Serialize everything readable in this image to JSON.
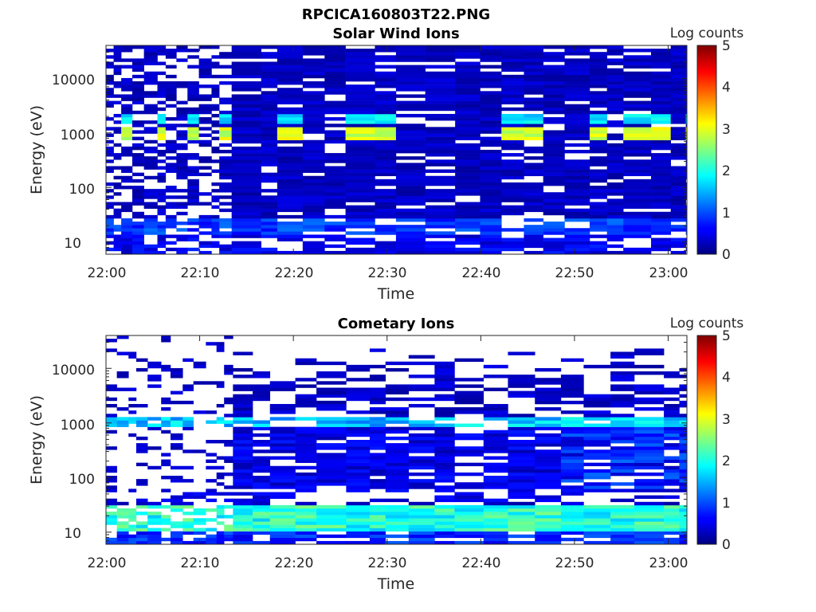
{
  "figure": {
    "title": "RPCICA160803T22.PNG"
  },
  "colormap": "jet",
  "chart_data": [
    {
      "type": "heatmap",
      "title": "Solar Wind Ions",
      "xlabel": "Time",
      "ylabel": "Energy (eV)",
      "y_scale": "log",
      "xlim": [
        "22:00",
        "23:02"
      ],
      "ylim": [
        6,
        40000
      ],
      "x_ticks": [
        "22:00",
        "22:10",
        "22:20",
        "22:30",
        "22:40",
        "22:50",
        "23:00"
      ],
      "y_ticks": [
        "10",
        "100",
        "1000",
        "10000"
      ],
      "colorbar": {
        "label": "Log counts",
        "range": [
          0,
          5
        ],
        "ticks": [
          "0",
          "1",
          "2",
          "3",
          "4",
          "5"
        ]
      },
      "features": [
        {
          "description": "periodic peak near 1000 eV, repeating about every 3.3 min",
          "energy_eV": 950,
          "log_counts": 3.0
        },
        {
          "description": "secondary band near 1700 eV",
          "energy_eV": 1700,
          "log_counts": 1.8
        },
        {
          "description": "low-energy band 15–25 eV",
          "energy_eV": 20,
          "log_counts": 1.0
        },
        {
          "description": "sparse background",
          "log_counts": 0.3
        }
      ]
    },
    {
      "type": "heatmap",
      "title": "Cometary Ions",
      "xlabel": "Time",
      "ylabel": "Energy (eV)",
      "y_scale": "log",
      "xlim": [
        "22:00",
        "23:02"
      ],
      "ylim": [
        6,
        40000
      ],
      "x_ticks": [
        "22:00",
        "22:10",
        "22:20",
        "22:30",
        "22:40",
        "22:50",
        "23:00"
      ],
      "y_ticks": [
        "10",
        "100",
        "1000",
        "10000"
      ],
      "colorbar": {
        "label": "Log counts",
        "range": [
          0,
          5
        ],
        "ticks": [
          "0",
          "1",
          "2",
          "3",
          "4",
          "5"
        ]
      },
      "features": [
        {
          "description": "strong low-energy band 12–30 eV",
          "energy_eV": 20,
          "log_counts": 2.3
        },
        {
          "description": "band near 1000 eV",
          "energy_eV": 1000,
          "log_counts": 1.8
        },
        {
          "description": "broad population 60–1000 eV",
          "log_counts": 0.6
        }
      ]
    }
  ]
}
